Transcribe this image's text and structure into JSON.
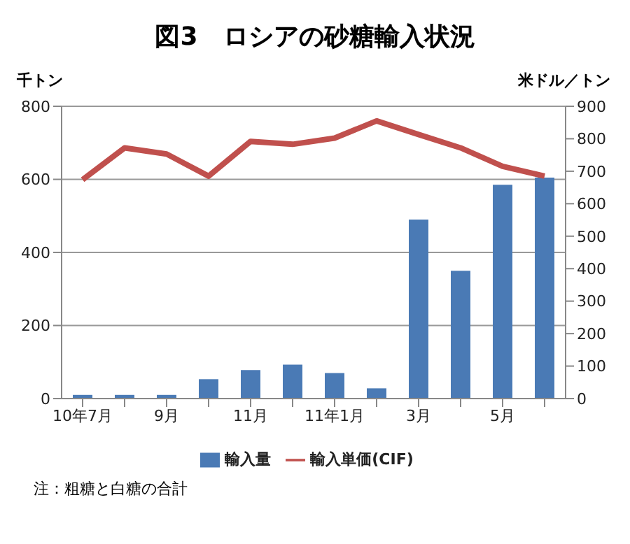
{
  "chart_data": {
    "type": "bar",
    "title": "図3　ロシアの砂糖輸入状況",
    "ylabel": "千トン",
    "y2label": "米ドル／トン",
    "categories": [
      "10年7月",
      null,
      "9月",
      null,
      "11月",
      null,
      "11年1月",
      null,
      "3月",
      null,
      "5月",
      null
    ],
    "series": [
      {
        "name": "輸入量",
        "color": "#4a7ab5",
        "values": [
          10,
          10,
          10,
          53,
          78,
          93,
          70,
          28,
          490,
          350,
          585,
          605
        ]
      },
      {
        "name": "輸入単価(CIF)",
        "type": "line",
        "axis": "y2",
        "color": "#c0504d",
        "values": [
          674,
          772,
          753,
          685,
          792,
          783,
          802,
          855,
          813,
          772,
          715,
          685
        ]
      }
    ],
    "ylim": [
      0,
      800
    ],
    "yticks": [
      0,
      200,
      400,
      600,
      800
    ],
    "y2lim": [
      0,
      900
    ],
    "y2ticks": [
      0,
      100,
      200,
      300,
      400,
      500,
      600,
      700,
      800,
      900
    ],
    "grid": "y",
    "legend": "bottom",
    "marker": "none",
    "line_style": "solid",
    "annotations": [
      "注：粗糖と白糖の合計"
    ]
  }
}
